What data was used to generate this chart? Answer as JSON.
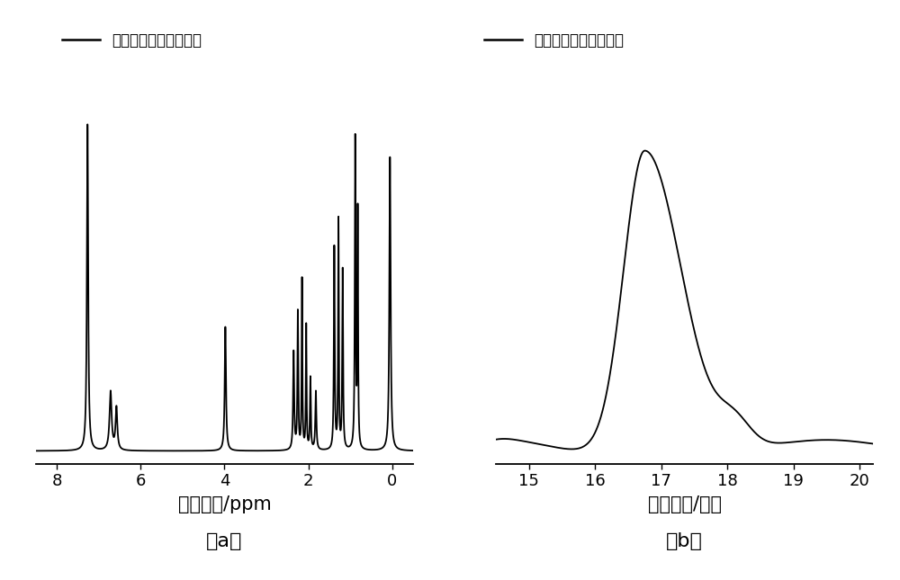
{
  "fig_width": 10.0,
  "fig_height": 6.45,
  "bg_color": "#ffffff",
  "legend_label": "双硅氢星型嵌段共聚物",
  "label_a": "（a）",
  "label_b": "（b）",
  "nmr_xlabel": "化学位移/ppm",
  "gpc_xlabel": "流出时间/分钟",
  "nmr_xlim": [
    8.5,
    -0.5
  ],
  "nmr_xticks": [
    8,
    6,
    4,
    2,
    0
  ],
  "gpc_xlim": [
    14.5,
    20.2
  ],
  "gpc_xticks": [
    15,
    16,
    17,
    18,
    19,
    20
  ],
  "line_color": "#000000",
  "line_width": 1.3
}
